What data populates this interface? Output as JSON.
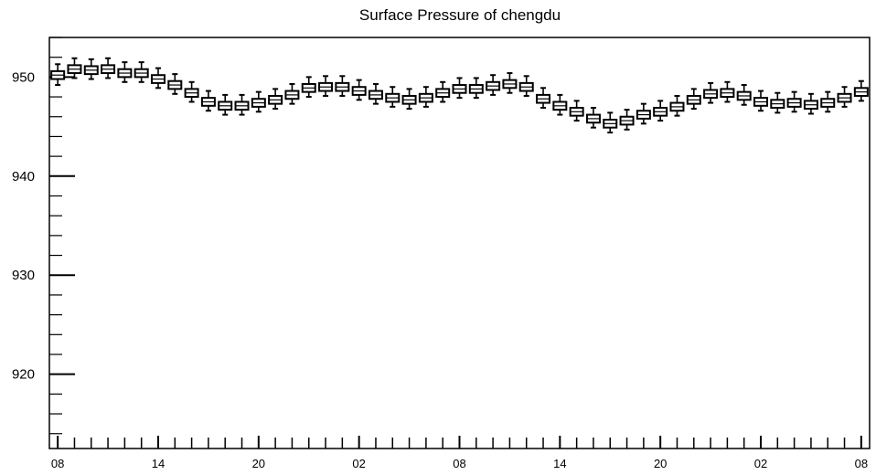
{
  "chart_data": {
    "type": "box",
    "title": "Surface Pressure of chengdu",
    "xlabel": "",
    "ylabel": "",
    "ylim": [
      912.5,
      954
    ],
    "y_major_ticks": [
      920,
      930,
      940,
      950
    ],
    "y_minor_step": 2,
    "x_tick_labels": [
      "08",
      "14",
      "20",
      "02",
      "08",
      "14",
      "20",
      "02",
      "08"
    ],
    "x_tick_label_hours": [
      0,
      6,
      12,
      18,
      24,
      30,
      36,
      42,
      48
    ],
    "x_range_hours": [
      -0.5,
      48.5
    ],
    "grid": false,
    "legend": "none",
    "boxes": [
      {
        "hour": 0,
        "median": 950.2,
        "q1": 949.8,
        "q3": 950.6,
        "low": 949.2,
        "high": 951.3
      },
      {
        "hour": 1,
        "median": 950.8,
        "q1": 950.4,
        "q3": 951.2,
        "low": 949.9,
        "high": 951.9
      },
      {
        "hour": 2,
        "median": 950.7,
        "q1": 950.3,
        "q3": 951.1,
        "low": 949.8,
        "high": 951.8
      },
      {
        "hour": 3,
        "median": 950.8,
        "q1": 950.4,
        "q3": 951.2,
        "low": 949.9,
        "high": 951.9
      },
      {
        "hour": 4,
        "median": 950.4,
        "q1": 950.0,
        "q3": 950.8,
        "low": 949.5,
        "high": 951.5
      },
      {
        "hour": 5,
        "median": 950.4,
        "q1": 950.0,
        "q3": 950.8,
        "low": 949.5,
        "high": 951.5
      },
      {
        "hour": 6,
        "median": 949.8,
        "q1": 949.4,
        "q3": 950.2,
        "low": 948.9,
        "high": 950.9
      },
      {
        "hour": 7,
        "median": 949.2,
        "q1": 948.8,
        "q3": 949.6,
        "low": 948.3,
        "high": 950.3
      },
      {
        "hour": 8,
        "median": 948.4,
        "q1": 948.0,
        "q3": 948.8,
        "low": 947.5,
        "high": 949.5
      },
      {
        "hour": 9,
        "median": 947.5,
        "q1": 947.1,
        "q3": 947.9,
        "low": 946.6,
        "high": 948.6
      },
      {
        "hour": 10,
        "median": 947.1,
        "q1": 946.7,
        "q3": 947.5,
        "low": 946.2,
        "high": 948.2
      },
      {
        "hour": 11,
        "median": 947.1,
        "q1": 946.7,
        "q3": 947.5,
        "low": 946.2,
        "high": 948.2
      },
      {
        "hour": 12,
        "median": 947.4,
        "q1": 947.0,
        "q3": 947.8,
        "low": 946.5,
        "high": 948.5
      },
      {
        "hour": 13,
        "median": 947.7,
        "q1": 947.3,
        "q3": 948.1,
        "low": 946.8,
        "high": 948.8
      },
      {
        "hour": 14,
        "median": 948.2,
        "q1": 947.8,
        "q3": 948.6,
        "low": 947.3,
        "high": 949.3
      },
      {
        "hour": 15,
        "median": 948.9,
        "q1": 948.5,
        "q3": 949.3,
        "low": 948.0,
        "high": 950.0
      },
      {
        "hour": 16,
        "median": 949.0,
        "q1": 948.6,
        "q3": 949.4,
        "low": 948.1,
        "high": 950.1
      },
      {
        "hour": 17,
        "median": 949.0,
        "q1": 948.6,
        "q3": 949.4,
        "low": 948.1,
        "high": 950.1
      },
      {
        "hour": 18,
        "median": 948.6,
        "q1": 948.2,
        "q3": 949.0,
        "low": 947.7,
        "high": 949.7
      },
      {
        "hour": 19,
        "median": 948.2,
        "q1": 947.8,
        "q3": 948.6,
        "low": 947.3,
        "high": 949.3
      },
      {
        "hour": 20,
        "median": 947.9,
        "q1": 947.5,
        "q3": 948.3,
        "low": 947.0,
        "high": 949.0
      },
      {
        "hour": 21,
        "median": 947.7,
        "q1": 947.3,
        "q3": 948.1,
        "low": 946.8,
        "high": 948.8
      },
      {
        "hour": 22,
        "median": 947.9,
        "q1": 947.5,
        "q3": 948.3,
        "low": 947.0,
        "high": 949.0
      },
      {
        "hour": 23,
        "median": 948.4,
        "q1": 948.0,
        "q3": 948.8,
        "low": 947.5,
        "high": 949.5
      },
      {
        "hour": 24,
        "median": 948.8,
        "q1": 948.4,
        "q3": 949.2,
        "low": 947.9,
        "high": 949.9
      },
      {
        "hour": 25,
        "median": 948.8,
        "q1": 948.4,
        "q3": 949.2,
        "low": 947.9,
        "high": 949.9
      },
      {
        "hour": 26,
        "median": 949.1,
        "q1": 948.7,
        "q3": 949.5,
        "low": 948.2,
        "high": 950.2
      },
      {
        "hour": 27,
        "median": 949.3,
        "q1": 948.9,
        "q3": 949.7,
        "low": 948.4,
        "high": 950.4
      },
      {
        "hour": 28,
        "median": 949.0,
        "q1": 948.6,
        "q3": 949.4,
        "low": 948.1,
        "high": 950.1
      },
      {
        "hour": 29,
        "median": 947.8,
        "q1": 947.4,
        "q3": 948.2,
        "low": 946.9,
        "high": 948.9
      },
      {
        "hour": 30,
        "median": 947.1,
        "q1": 946.7,
        "q3": 947.5,
        "low": 946.2,
        "high": 948.2
      },
      {
        "hour": 31,
        "median": 946.5,
        "q1": 946.1,
        "q3": 946.9,
        "low": 945.6,
        "high": 947.6
      },
      {
        "hour": 32,
        "median": 945.8,
        "q1": 945.4,
        "q3": 946.2,
        "low": 944.9,
        "high": 946.9
      },
      {
        "hour": 33,
        "median": 945.3,
        "q1": 944.9,
        "q3": 945.7,
        "low": 944.4,
        "high": 946.4
      },
      {
        "hour": 34,
        "median": 945.6,
        "q1": 945.2,
        "q3": 946.0,
        "low": 944.7,
        "high": 946.7
      },
      {
        "hour": 35,
        "median": 946.2,
        "q1": 945.8,
        "q3": 946.6,
        "low": 945.3,
        "high": 947.3
      },
      {
        "hour": 36,
        "median": 946.5,
        "q1": 946.1,
        "q3": 946.9,
        "low": 945.6,
        "high": 947.6
      },
      {
        "hour": 37,
        "median": 947.0,
        "q1": 946.6,
        "q3": 947.4,
        "low": 946.1,
        "high": 948.1
      },
      {
        "hour": 38,
        "median": 947.7,
        "q1": 947.3,
        "q3": 948.1,
        "low": 946.8,
        "high": 948.8
      },
      {
        "hour": 39,
        "median": 948.3,
        "q1": 947.9,
        "q3": 948.7,
        "low": 947.4,
        "high": 949.4
      },
      {
        "hour": 40,
        "median": 948.4,
        "q1": 948.0,
        "q3": 948.8,
        "low": 947.5,
        "high": 949.5
      },
      {
        "hour": 41,
        "median": 948.1,
        "q1": 947.7,
        "q3": 948.5,
        "low": 947.2,
        "high": 949.2
      },
      {
        "hour": 42,
        "median": 947.5,
        "q1": 947.1,
        "q3": 947.9,
        "low": 946.6,
        "high": 948.6
      },
      {
        "hour": 43,
        "median": 947.3,
        "q1": 946.9,
        "q3": 947.7,
        "low": 946.4,
        "high": 948.4
      },
      {
        "hour": 44,
        "median": 947.4,
        "q1": 947.0,
        "q3": 947.8,
        "low": 946.5,
        "high": 948.5
      },
      {
        "hour": 45,
        "median": 947.2,
        "q1": 946.8,
        "q3": 947.6,
        "low": 946.3,
        "high": 948.3
      },
      {
        "hour": 46,
        "median": 947.4,
        "q1": 947.0,
        "q3": 947.8,
        "low": 946.5,
        "high": 948.5
      },
      {
        "hour": 47,
        "median": 947.9,
        "q1": 947.5,
        "q3": 948.3,
        "low": 947.0,
        "high": 949.0
      },
      {
        "hour": 48,
        "median": 948.5,
        "q1": 948.1,
        "q3": 948.9,
        "low": 947.6,
        "high": 949.6
      }
    ]
  }
}
